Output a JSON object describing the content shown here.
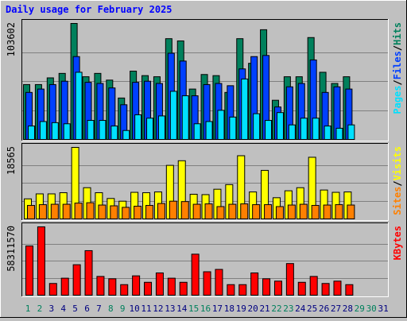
{
  "chart_data": [
    {
      "panel": "top",
      "type": "bar",
      "title": "Daily usage for February 2025",
      "ymax_label": "103602",
      "ymax": 103602,
      "x": [
        1,
        2,
        3,
        4,
        5,
        6,
        7,
        8,
        9,
        10,
        11,
        12,
        13,
        14,
        15,
        16,
        17,
        18,
        19,
        20,
        21,
        22,
        23,
        24,
        25,
        26,
        27,
        28,
        29,
        30,
        31
      ],
      "right_labels": [
        "Pages",
        "/",
        "Files",
        "/",
        "Hits"
      ],
      "series": [
        {
          "name": "Hits",
          "color": "#00805c",
          "values": [
            49000,
            49000,
            55000,
            59000,
            103602,
            56000,
            59000,
            53000,
            37000,
            61000,
            57000,
            56000,
            90000,
            88000,
            45000,
            58000,
            57000,
            42000,
            90000,
            68000,
            98000,
            35000,
            56000,
            56000,
            91000,
            60000,
            50000,
            56000,
            0,
            0,
            0
          ]
        },
        {
          "name": "Files",
          "color": "#0040ff",
          "values": [
            42000,
            45000,
            49000,
            52000,
            74000,
            51000,
            50000,
            46000,
            31000,
            51000,
            52000,
            50000,
            77000,
            70000,
            39000,
            49000,
            50000,
            48000,
            63000,
            74000,
            75000,
            29000,
            47000,
            50000,
            71000,
            42000,
            47000,
            45000,
            0,
            0,
            0
          ]
        },
        {
          "name": "Pages",
          "color": "#00e0ff",
          "values": [
            12000,
            16000,
            15000,
            14000,
            60000,
            17000,
            17000,
            12000,
            8000,
            22000,
            19000,
            21000,
            43000,
            39000,
            14000,
            16000,
            26000,
            20000,
            54000,
            23000,
            17000,
            24000,
            13000,
            19000,
            19000,
            12000,
            10000,
            13000,
            0,
            0,
            0
          ]
        }
      ]
    },
    {
      "panel": "middle",
      "type": "bar",
      "ymax_label": "18565",
      "ymax": 18565,
      "x": [
        1,
        2,
        3,
        4,
        5,
        6,
        7,
        8,
        9,
        10,
        11,
        12,
        13,
        14,
        15,
        16,
        17,
        18,
        19,
        20,
        21,
        22,
        23,
        24,
        25,
        26,
        27,
        28,
        29,
        30,
        31
      ],
      "right_labels": [
        "Sites",
        "/",
        "Visits"
      ],
      "series": [
        {
          "name": "Visits",
          "color": "#ffff00",
          "values": [
            5200,
            6500,
            6500,
            6800,
            18565,
            8100,
            6800,
            5300,
            4600,
            6900,
            6800,
            7000,
            13900,
            15100,
            6400,
            6300,
            7700,
            8900,
            16400,
            7000,
            12600,
            5500,
            7300,
            8100,
            16000,
            7500,
            6900,
            7000,
            0,
            0,
            0
          ]
        },
        {
          "name": "Sites",
          "color": "#ff8000",
          "values": [
            3500,
            3700,
            3800,
            3800,
            4100,
            4200,
            3600,
            3400,
            3000,
            3300,
            3500,
            4000,
            4600,
            4500,
            3800,
            3900,
            3200,
            3800,
            3900,
            3700,
            3700,
            3200,
            3600,
            3800,
            3500,
            3600,
            3700,
            3600,
            0,
            0,
            0
          ]
        }
      ]
    },
    {
      "panel": "bottom",
      "type": "bar",
      "ymax_label": "58311570",
      "ymax": 58311570,
      "x": [
        1,
        2,
        3,
        4,
        5,
        6,
        7,
        8,
        9,
        10,
        11,
        12,
        13,
        14,
        15,
        16,
        17,
        18,
        19,
        20,
        21,
        22,
        23,
        24,
        25,
        26,
        27,
        28,
        29,
        30,
        31
      ],
      "right_labels": [
        "KBytes"
      ],
      "series": [
        {
          "name": "KBytes",
          "color": "#ff0000",
          "values": [
            42000000,
            58311570,
            10000000,
            14500000,
            26000000,
            38000000,
            16000000,
            14000000,
            9000000,
            16500000,
            11000000,
            19000000,
            14500000,
            11000000,
            35000000,
            20000000,
            22000000,
            9000000,
            9000000,
            19000000,
            14000000,
            12000000,
            27000000,
            11000000,
            16000000,
            10000000,
            12000000,
            9000000,
            0,
            0,
            0
          ]
        }
      ]
    }
  ],
  "day_label_colors": {
    "weekday": "#000080",
    "weekend": "#00805c",
    "weekend_days": [
      1,
      2,
      8,
      9,
      15,
      16,
      22,
      23,
      29,
      30
    ]
  }
}
